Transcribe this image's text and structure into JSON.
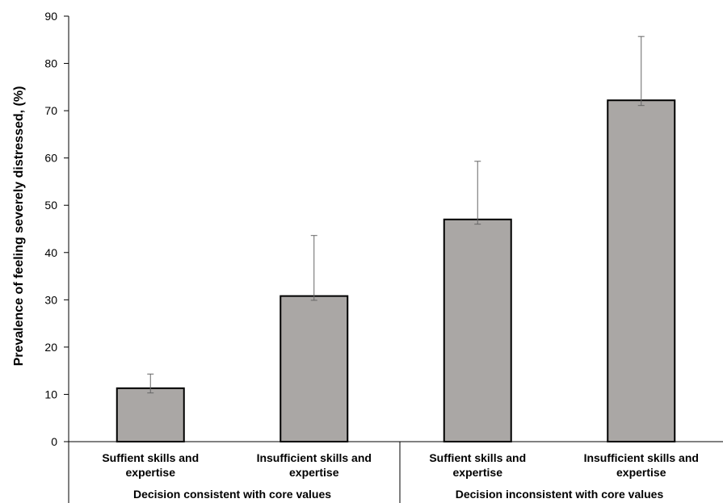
{
  "chart_data": {
    "type": "bar",
    "title": "",
    "ylabel": "Prevalence of feeling severely distressed, (%)",
    "ylim": [
      0,
      90
    ],
    "yticks": [
      0,
      10,
      20,
      30,
      40,
      50,
      60,
      70,
      80,
      90
    ],
    "grid": false,
    "categories": [
      {
        "line1": "Suffient skills and",
        "line2": "expertise"
      },
      {
        "line1": "Insufficient skills and",
        "line2": "expertise"
      },
      {
        "line1": "Suffient skills and",
        "line2": "expertise"
      },
      {
        "line1": "Insufficient skills and",
        "line2": "expertise"
      }
    ],
    "groups": [
      "Decision consistent with core values",
      "Decision inconsistent with core values"
    ],
    "values": [
      11.3,
      30.8,
      47.0,
      72.2
    ],
    "error_upper": [
      14.3,
      43.6,
      59.3,
      85.7
    ],
    "error_lower": [
      10.3,
      29.9,
      46.0,
      71.1
    ],
    "bar_color": "#aaa7a5",
    "bar_edge_color": "#000000"
  }
}
